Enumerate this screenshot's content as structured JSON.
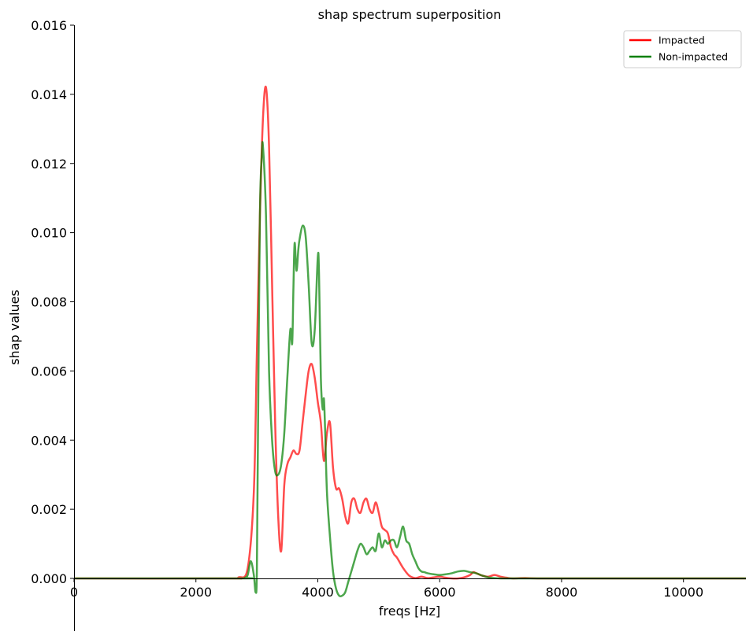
{
  "chart_data": {
    "type": "line",
    "title": "shap spectrum superposition",
    "xlabel": "freqs [Hz]",
    "ylabel": "shap values",
    "xlim": [
      0,
      11025
    ],
    "ylim": [
      0,
      0.016
    ],
    "xticks": [
      0,
      2000,
      4000,
      6000,
      8000,
      10000
    ],
    "xtick_labels": [
      "0",
      "2000",
      "4000",
      "6000",
      "8000",
      "10000"
    ],
    "yticks": [
      0,
      0.002,
      0.004,
      0.006,
      0.008,
      0.01,
      0.012,
      0.014,
      0.016
    ],
    "ytick_labels": [
      "0.000",
      "0.002",
      "0.004",
      "0.006",
      "0.008",
      "0.010",
      "0.012",
      "0.014",
      "0.016"
    ],
    "grid": false,
    "legend_position": "top-right",
    "series": [
      {
        "name": "Impacted",
        "color": "#ff0000",
        "x": [
          0,
          2500,
          2700,
          2850,
          2950,
          3000,
          3050,
          3100,
          3150,
          3200,
          3250,
          3300,
          3350,
          3400,
          3450,
          3500,
          3550,
          3600,
          3650,
          3700,
          3750,
          3800,
          3850,
          3900,
          3950,
          4000,
          4050,
          4100,
          4150,
          4200,
          4250,
          4300,
          4350,
          4400,
          4450,
          4500,
          4550,
          4600,
          4650,
          4700,
          4750,
          4800,
          4850,
          4900,
          4950,
          5000,
          5050,
          5100,
          5150,
          5200,
          5250,
          5300,
          5400,
          5500,
          5600,
          5700,
          5800,
          5900,
          6000,
          6100,
          6200,
          6300,
          6400,
          6500,
          6550,
          6600,
          6700,
          6800,
          6900,
          7000,
          7100,
          7200,
          7400,
          7600,
          8000,
          11025
        ],
        "y": [
          0,
          0,
          3e-05,
          0.0003,
          0.0025,
          0.0065,
          0.0105,
          0.0133,
          0.0142,
          0.0125,
          0.0085,
          0.0045,
          0.0018,
          0.0008,
          0.0027,
          0.0033,
          0.0035,
          0.0037,
          0.0036,
          0.0037,
          0.0045,
          0.0053,
          0.006,
          0.0062,
          0.0058,
          0.0051,
          0.0045,
          0.0034,
          0.0042,
          0.0045,
          0.0032,
          0.0026,
          0.0026,
          0.0023,
          0.0018,
          0.0016,
          0.0022,
          0.0023,
          0.002,
          0.0019,
          0.0022,
          0.0023,
          0.002,
          0.0019,
          0.0022,
          0.0019,
          0.0015,
          0.0014,
          0.0013,
          0.0009,
          0.0007,
          0.0006,
          0.0003,
          8e-05,
          1e-05,
          5e-05,
          1e-05,
          3e-05,
          5e-05,
          2e-05,
          0.0,
          0.0,
          3e-05,
          0.0001,
          0.00018,
          0.00015,
          8e-05,
          5e-05,
          0.0001,
          5e-05,
          2e-05,
          0.0,
          1e-05,
          0.0,
          0.0,
          0.0
        ]
      },
      {
        "name": "Non-impacted",
        "color": "#008000",
        "x": [
          0,
          2700,
          2800,
          2850,
          2900,
          2950,
          2980,
          3000,
          3020,
          3050,
          3080,
          3100,
          3150,
          3200,
          3250,
          3300,
          3350,
          3400,
          3450,
          3500,
          3550,
          3580,
          3600,
          3620,
          3650,
          3680,
          3700,
          3750,
          3800,
          3850,
          3900,
          3950,
          4000,
          4020,
          4050,
          4080,
          4100,
          4120,
          4150,
          4200,
          4250,
          4300,
          4350,
          4400,
          4450,
          4500,
          4550,
          4600,
          4650,
          4700,
          4750,
          4800,
          4850,
          4900,
          4950,
          5000,
          5050,
          5100,
          5150,
          5200,
          5250,
          5300,
          5350,
          5400,
          5450,
          5500,
          5550,
          5600,
          5650,
          5700,
          5750,
          5800,
          5900,
          6000,
          6100,
          6200,
          6300,
          6400,
          6500,
          6600,
          6700,
          6800,
          6900,
          7000,
          7100,
          7200,
          7300,
          7500,
          8000,
          11025
        ],
        "y": [
          0,
          0,
          2e-05,
          0.0001,
          0.0005,
          0.0001,
          -0.0004,
          0.0002,
          0.0045,
          0.0105,
          0.0122,
          0.0125,
          0.0105,
          0.006,
          0.004,
          0.0031,
          0.003,
          0.0033,
          0.0042,
          0.0058,
          0.0072,
          0.0068,
          0.0084,
          0.0097,
          0.0089,
          0.0095,
          0.0098,
          0.0102,
          0.0099,
          0.0085,
          0.0068,
          0.0072,
          0.0093,
          0.0088,
          0.0058,
          0.0049,
          0.0052,
          0.0043,
          0.0025,
          0.0012,
          0.0002,
          -0.0003,
          -0.0005,
          -0.0005,
          -0.0004,
          -0.0001,
          0.0002,
          0.0005,
          0.0008,
          0.001,
          0.0009,
          0.0007,
          0.0008,
          0.0009,
          0.0008,
          0.0013,
          0.0009,
          0.0011,
          0.001,
          0.0011,
          0.0011,
          0.0009,
          0.0012,
          0.0015,
          0.0011,
          0.001,
          0.0007,
          0.0005,
          0.0003,
          0.0002,
          0.00018,
          0.00015,
          0.00012,
          0.0001,
          0.00012,
          0.00015,
          0.0002,
          0.00022,
          0.00018,
          0.00015,
          8e-05,
          3e-05,
          1e-05,
          0.0,
          0.0,
          0.0,
          0.0,
          0.0,
          0.0,
          0.0
        ]
      }
    ]
  }
}
